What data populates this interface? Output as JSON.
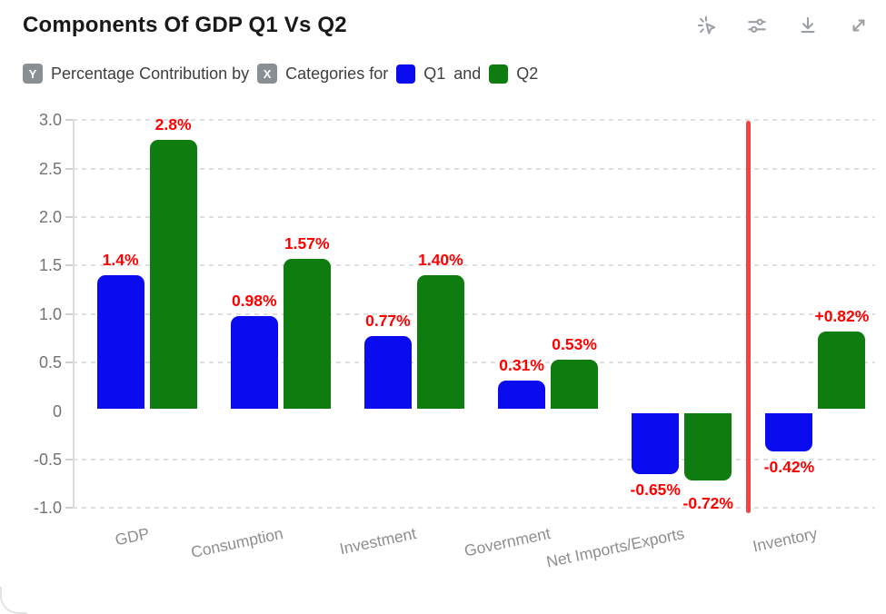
{
  "header": {
    "title": "Components Of GDP Q1 Vs Q2",
    "toolbar_icons": [
      "interact-cursor-icon",
      "filter-sliders-icon",
      "download-icon",
      "expand-icon"
    ]
  },
  "subtitle": {
    "y_badge": "Y",
    "y_label": "Percentage Contribution by",
    "x_badge": "X",
    "x_label": "Categories for",
    "join_word": "and",
    "legend": [
      {
        "label": "Q1",
        "color": "#0b0bef"
      },
      {
        "label": "Q2",
        "color": "#0e7c0e"
      }
    ]
  },
  "chart_data": {
    "type": "bar",
    "title": "Components Of GDP Q1 Vs Q2",
    "xlabel": "Categories",
    "ylabel": "Percentage Contribution",
    "categories": [
      "GDP",
      "Consumption",
      "Investment",
      "Government",
      "Net Imports/Exports",
      "Inventory"
    ],
    "series": [
      {
        "name": "Q1",
        "color": "#0b0bef",
        "values": [
          1.4,
          0.98,
          0.77,
          0.31,
          -0.65,
          -0.42
        ],
        "data_labels": [
          "1.4%",
          "0.98%",
          "0.77%",
          "0.31%",
          "-0.65%",
          "-0.42%"
        ]
      },
      {
        "name": "Q2",
        "color": "#0e7c0e",
        "values": [
          2.8,
          1.57,
          1.4,
          0.53,
          -0.72,
          0.82
        ],
        "data_labels": [
          "2.8%",
          "1.57%",
          "1.40%",
          "0.53%",
          "-0.72%",
          "+0.82%"
        ]
      }
    ],
    "ytick_labels": [
      "3.0",
      "2.5",
      "2.0",
      "1.5",
      "1.0",
      "0.5",
      "0",
      "-0.5",
      "-1.0"
    ],
    "yticks": [
      3.0,
      2.5,
      2.0,
      1.5,
      1.0,
      0.5,
      0,
      -0.5,
      -1.0
    ],
    "ylim": [
      -1.0,
      3.0
    ],
    "grid": true,
    "grid_skip_zero": true,
    "data_label_color": "#ff0000",
    "separator_line": {
      "orientation": "vertical",
      "after_category": "Net Imports/Exports",
      "color": "#f04444"
    }
  }
}
